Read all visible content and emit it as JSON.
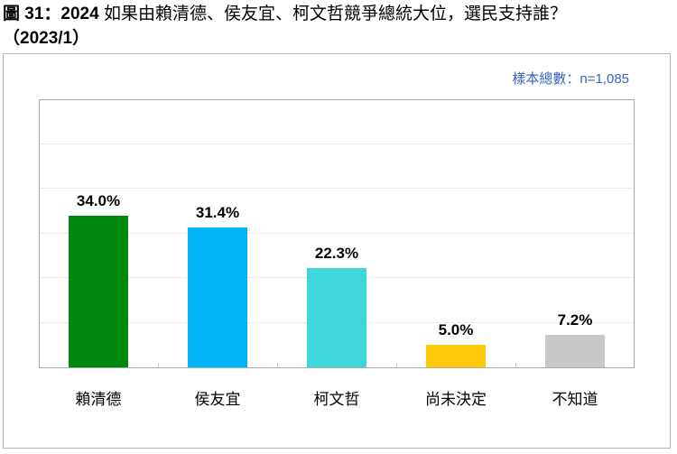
{
  "title": {
    "figure_number": "圖 31：2024",
    "question": " 如果由賴清德、侯友宜、柯文哲競爭總統大位，選民支持誰？",
    "date": "（2023/1）"
  },
  "sample_size": "樣本總數：n=1,085",
  "chart_data": {
    "type": "bar",
    "title": "圖 31：2024 如果由賴清德、侯友宜、柯文哲競爭總統大位，選民支持誰？（2023/1）",
    "subtitle": "樣本總數：n=1,085",
    "xlabel": "",
    "ylabel": "",
    "ylim": [
      0,
      60
    ],
    "grid": true,
    "gridline_step": 10,
    "legend": "none",
    "categories": [
      "賴清德",
      "侯友宜",
      "柯文哲",
      "尚未決定",
      "不知道"
    ],
    "values": [
      34.0,
      31.4,
      22.3,
      5.0,
      7.2
    ],
    "value_labels": [
      "34.0%",
      "31.4%",
      "22.3%",
      "5.0%",
      "7.2%"
    ],
    "colors": [
      "#00880F",
      "#00B4F5",
      "#3ED8DC",
      "#FFC90A",
      "#C8C8C8"
    ]
  }
}
